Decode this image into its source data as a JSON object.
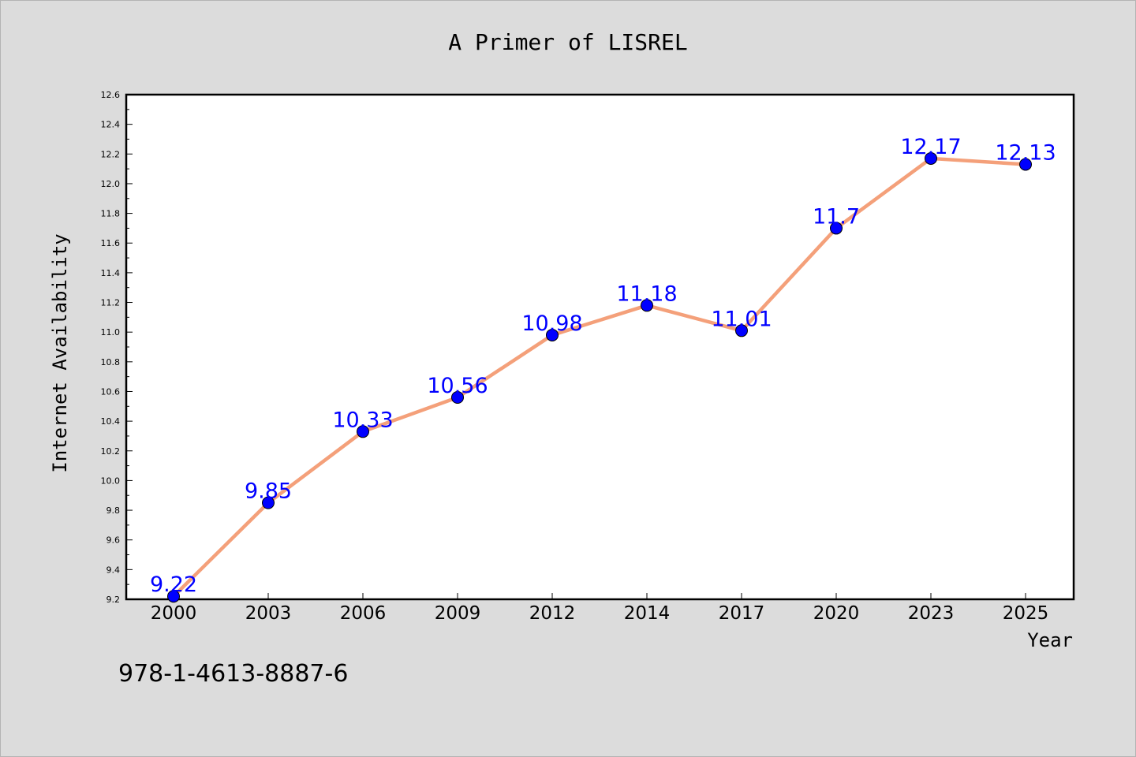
{
  "chart_data": {
    "type": "line",
    "title": "A Primer of LISREL",
    "xlabel": "Year",
    "ylabel": "Internet Availability",
    "categories": [
      "2000",
      "2003",
      "2006",
      "2009",
      "2012",
      "2014",
      "2017",
      "2020",
      "2023",
      "2025"
    ],
    "series": [
      {
        "values": [
          9.22,
          9.85,
          10.33,
          10.56,
          10.98,
          11.18,
          11.01,
          11.7,
          12.17,
          12.13
        ],
        "data_labels": [
          "9.22",
          "9.85",
          "10.33",
          "10.56",
          "10.98",
          "11.18",
          "11.01",
          "11.7",
          "12.17",
          "12.13"
        ],
        "line_color": "#f4a07a",
        "marker_color": "#0000ff"
      }
    ],
    "ylim": [
      9.2,
      12.6
    ],
    "yticks": [
      "9.2",
      "9.4",
      "9.6",
      "9.8",
      "10.0",
      "10.2",
      "10.4",
      "10.6",
      "10.8",
      "11.0",
      "11.2",
      "11.4",
      "11.6",
      "11.8",
      "12.0",
      "12.2",
      "12.4",
      "12.6"
    ],
    "grid": false,
    "legend": "none"
  },
  "footer": {
    "isbn": "978-1-4613-8887-6"
  },
  "colors": {
    "background": "#dcdcdc",
    "plot_background": "#ffffff",
    "label_color": "#0000ff"
  }
}
